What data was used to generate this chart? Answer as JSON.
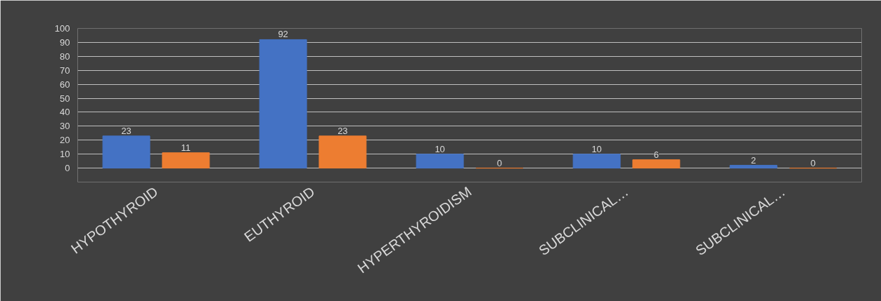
{
  "chart_data": {
    "type": "bar",
    "categories": [
      "HYPOTHYROID",
      "EUTHYROID",
      "HYPERTHYROIDISM",
      "SUBCLINICAL…",
      "SUBCLINICAL…"
    ],
    "series": [
      {
        "color": "#4472c4",
        "values": [
          23,
          92,
          10,
          10,
          2
        ]
      },
      {
        "color": "#ed7d31",
        "values": [
          11,
          23,
          0,
          6,
          0
        ]
      }
    ],
    "ylim": [
      -10,
      100
    ],
    "yticks": [
      {
        "value": -10,
        "label": null
      },
      0,
      10,
      20,
      30,
      40,
      50,
      60,
      70,
      80,
      90,
      100
    ],
    "grid": "y",
    "data_labels": true
  }
}
